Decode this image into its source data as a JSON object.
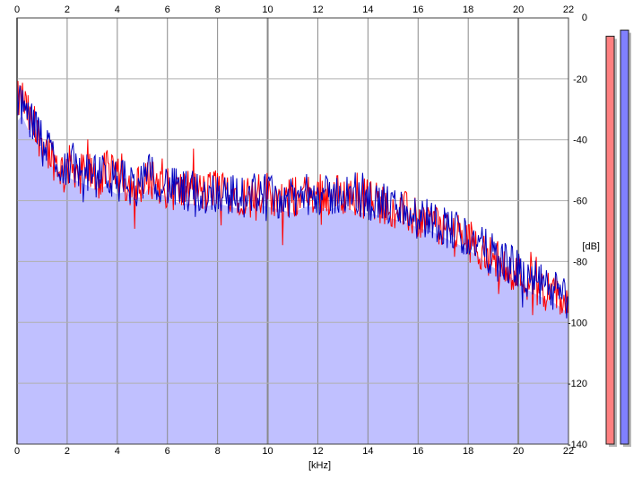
{
  "chart_data": {
    "type": "area",
    "xlabel": "[kHz]",
    "ylabel": "[dB]",
    "xlim": [
      0,
      22
    ],
    "ylim": [
      -140,
      0
    ],
    "x_ticks": [
      0,
      2,
      4,
      6,
      8,
      10,
      12,
      14,
      16,
      18,
      20,
      22
    ],
    "y_ticks": [
      0,
      -20,
      -40,
      -60,
      -80,
      -100,
      -120,
      -140
    ],
    "grid": true,
    "fill_color": "#c0c0ff",
    "series": [
      {
        "color": "#ff0000",
        "x": [
          0.0,
          0.2,
          0.4,
          0.6,
          0.8,
          1.0,
          1.2,
          1.5,
          1.8,
          2.0,
          2.2,
          2.5,
          2.8,
          3.0,
          3.3,
          3.6,
          3.8,
          4.0,
          4.3,
          4.6,
          5.0,
          5.3,
          5.6,
          6.0,
          6.5,
          7.0,
          7.5,
          8.0,
          8.5,
          9.0,
          9.5,
          10.0,
          10.5,
          11.0,
          11.5,
          12.0,
          12.5,
          13.0,
          13.5,
          14.0,
          14.5,
          15.0,
          15.5,
          16.0,
          16.5,
          17.0,
          17.5,
          18.0,
          18.5,
          19.0,
          19.5,
          20.0,
          20.5,
          21.0,
          21.5,
          22.0
        ],
        "values": [
          -28,
          -26,
          -31,
          -36,
          -38,
          -40,
          -43,
          -47,
          -50,
          -49,
          -48,
          -51,
          -50,
          -52,
          -53,
          -50,
          -52,
          -53,
          -54,
          -55,
          -56,
          -52,
          -54,
          -56,
          -57,
          -56,
          -58,
          -55,
          -57,
          -58,
          -58,
          -57,
          -60,
          -59,
          -58,
          -58,
          -58,
          -58,
          -59,
          -59,
          -61,
          -62,
          -64,
          -66,
          -67,
          -69,
          -70,
          -73,
          -76,
          -79,
          -81,
          -84,
          -87,
          -89,
          -91,
          -94
        ]
      },
      {
        "color": "#0000c0",
        "x": [
          0.0,
          0.2,
          0.4,
          0.6,
          0.8,
          1.0,
          1.2,
          1.5,
          1.8,
          2.0,
          2.2,
          2.5,
          2.8,
          3.0,
          3.3,
          3.6,
          3.8,
          4.0,
          4.3,
          4.6,
          5.0,
          5.3,
          5.6,
          6.0,
          6.5,
          7.0,
          7.5,
          8.0,
          8.5,
          9.0,
          9.5,
          10.0,
          10.5,
          11.0,
          11.5,
          12.0,
          12.5,
          13.0,
          13.5,
          14.0,
          14.5,
          15.0,
          15.5,
          16.0,
          16.5,
          17.0,
          17.5,
          18.0,
          18.5,
          19.0,
          19.5,
          20.0,
          20.5,
          21.0,
          21.5,
          22.0
        ],
        "values": [
          -30,
          -28,
          -32,
          -35,
          -37,
          -39,
          -42,
          -46,
          -49,
          -48,
          -49,
          -50,
          -51,
          -52,
          -52,
          -51,
          -53,
          -54,
          -53,
          -55,
          -55,
          -51,
          -53,
          -55,
          -57,
          -57,
          -58,
          -57,
          -58,
          -59,
          -57,
          -58,
          -59,
          -60,
          -58,
          -58,
          -59,
          -57,
          -60,
          -60,
          -61,
          -62,
          -63,
          -65,
          -66,
          -68,
          -70,
          -72,
          -75,
          -78,
          -80,
          -83,
          -86,
          -88,
          -90,
          -93
        ]
      }
    ],
    "level_meters": [
      {
        "color": "#ff8080",
        "level_db": -6
      },
      {
        "color": "#8080ff",
        "level_db": -4
      }
    ]
  }
}
